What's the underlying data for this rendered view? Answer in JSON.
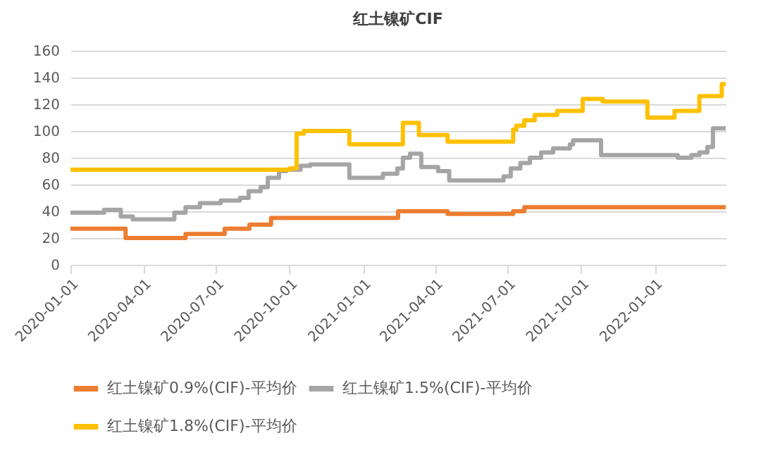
{
  "chart_data": {
    "type": "step",
    "title": "红土镍矿CIF",
    "xlim": [
      "2020-01-01",
      "2022-03-31"
    ],
    "xticks": [
      "2020-01-01",
      "2020-04-01",
      "2020-07-01",
      "2020-10-01",
      "2021-01-01",
      "2021-04-01",
      "2021-07-01",
      "2021-10-01",
      "2022-01-01"
    ],
    "ylim": [
      0,
      160
    ],
    "yticks": [
      0,
      20,
      40,
      60,
      80,
      100,
      120,
      140,
      160
    ],
    "grid": "y",
    "legend": "bottom",
    "series": [
      {
        "name": "红土镍矿0.9%(CIF)-平均价",
        "color": "#ed7d31",
        "x": [
          "2020-01-01",
          "2020-03-10",
          "2020-05-24",
          "2020-07-12",
          "2020-08-12",
          "2020-09-08",
          "2021-02-14",
          "2021-04-17",
          "2021-07-08",
          "2021-07-22",
          "2022-03-31"
        ],
        "values": [
          27,
          20,
          23,
          27,
          30,
          35,
          40,
          38,
          40,
          43,
          43
        ]
      },
      {
        "name": "红土镍矿1.5%(CIF)-平均价",
        "color": "#a5a5a5",
        "x": [
          "2020-01-01",
          "2020-02-12",
          "2020-03-04",
          "2020-03-19",
          "2020-05-10",
          "2020-05-24",
          "2020-06-11",
          "2020-07-07",
          "2020-07-31",
          "2020-08-11",
          "2020-08-26",
          "2020-09-04",
          "2020-09-18",
          "2020-09-27",
          "2020-10-15",
          "2020-10-27",
          "2020-12-15",
          "2021-01-26",
          "2021-02-13",
          "2021-02-20",
          "2021-03-01",
          "2021-03-15",
          "2021-04-05",
          "2021-04-19",
          "2021-06-26",
          "2021-07-05",
          "2021-07-17",
          "2021-07-29",
          "2021-08-12",
          "2021-08-27",
          "2021-09-17",
          "2021-09-21",
          "2021-10-26",
          "2022-01-30",
          "2022-02-16",
          "2022-02-26",
          "2022-03-08",
          "2022-03-15",
          "2022-03-31"
        ],
        "values": [
          39,
          41,
          36,
          34,
          39,
          43,
          46,
          48,
          50,
          55,
          58,
          65,
          70,
          71,
          74,
          75,
          65,
          68,
          72,
          80,
          83,
          73,
          70,
          63,
          66,
          72,
          76,
          80,
          84,
          87,
          90,
          93,
          82,
          80,
          82,
          84,
          88,
          102,
          102
        ]
      },
      {
        "name": "红土镍矿1.8%(CIF)-平均价",
        "color": "#ffc000",
        "x": [
          "2020-01-01",
          "2020-10-01",
          "2020-10-10",
          "2020-10-19",
          "2020-12-15",
          "2021-02-20",
          "2021-03-12",
          "2021-04-17",
          "2021-07-08",
          "2021-07-12",
          "2021-07-22",
          "2021-08-04",
          "2021-09-01",
          "2021-10-03",
          "2021-10-28",
          "2021-12-23",
          "2022-01-26",
          "2022-02-26",
          "2022-03-26",
          "2022-03-31"
        ],
        "values": [
          71,
          72,
          98,
          100,
          90,
          106,
          97,
          92,
          101,
          104,
          108,
          112,
          115,
          124,
          122,
          110,
          115,
          126,
          135,
          135
        ]
      }
    ]
  }
}
